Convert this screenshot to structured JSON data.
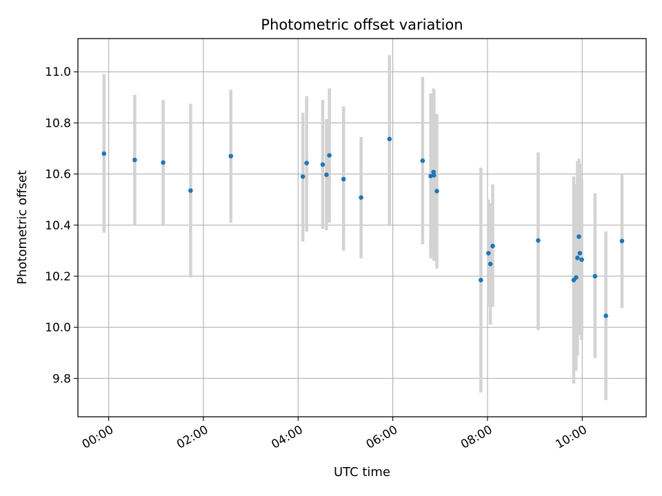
{
  "chart_data": {
    "type": "scatter",
    "title": "Photometric offset variation",
    "xlabel": "UTC time",
    "ylabel": "Photometric offset",
    "x_unit": "hours (UTC)",
    "xlim": [
      -0.65,
      11.35
    ],
    "ylim": [
      9.65,
      11.13
    ],
    "x_ticks": [
      {
        "value": 0,
        "label": "00:00"
      },
      {
        "value": 2,
        "label": "02:00"
      },
      {
        "value": 4,
        "label": "04:00"
      },
      {
        "value": 6,
        "label": "06:00"
      },
      {
        "value": 8,
        "label": "08:00"
      },
      {
        "value": 10,
        "label": "10:00"
      }
    ],
    "y_ticks": [
      {
        "value": 9.8,
        "label": "9.8"
      },
      {
        "value": 10.0,
        "label": "10.0"
      },
      {
        "value": 10.2,
        "label": "10.2"
      },
      {
        "value": 10.4,
        "label": "10.4"
      },
      {
        "value": 10.6,
        "label": "10.6"
      },
      {
        "value": 10.8,
        "label": "10.8"
      },
      {
        "value": 11.0,
        "label": "11.0"
      }
    ],
    "grid": true,
    "colors": {
      "marker": "#1f77b4",
      "errorbar": "#d3d3d3",
      "grid": "#b0b0b0"
    },
    "series": [
      {
        "points": [
          {
            "x": -0.1,
            "y": 10.68,
            "ylow": 10.37,
            "yhigh": 10.99
          },
          {
            "x": 0.55,
            "y": 10.655,
            "ylow": 10.4,
            "yhigh": 10.91
          },
          {
            "x": 1.15,
            "y": 10.645,
            "ylow": 10.4,
            "yhigh": 10.89
          },
          {
            "x": 1.73,
            "y": 10.535,
            "ylow": 10.195,
            "yhigh": 10.875
          },
          {
            "x": 2.58,
            "y": 10.67,
            "ylow": 10.41,
            "yhigh": 10.93
          },
          {
            "x": 4.1,
            "y": 10.59,
            "ylow": 10.335,
            "yhigh": 10.84
          },
          {
            "x": 4.18,
            "y": 10.643,
            "ylow": 10.375,
            "yhigh": 10.905
          },
          {
            "x": 4.52,
            "y": 10.637,
            "ylow": 10.385,
            "yhigh": 10.89
          },
          {
            "x": 4.6,
            "y": 10.597,
            "ylow": 10.38,
            "yhigh": 10.815
          },
          {
            "x": 4.66,
            "y": 10.673,
            "ylow": 10.41,
            "yhigh": 10.935
          },
          {
            "x": 4.96,
            "y": 10.58,
            "ylow": 10.3,
            "yhigh": 10.865
          },
          {
            "x": 5.33,
            "y": 10.508,
            "ylow": 10.27,
            "yhigh": 10.745
          },
          {
            "x": 5.93,
            "y": 10.737,
            "ylow": 10.4,
            "yhigh": 11.065
          },
          {
            "x": 6.63,
            "y": 10.652,
            "ylow": 10.325,
            "yhigh": 10.98
          },
          {
            "x": 6.8,
            "y": 10.592,
            "ylow": 10.27,
            "yhigh": 10.915
          },
          {
            "x": 6.86,
            "y": 10.608,
            "ylow": 10.28,
            "yhigh": 10.935
          },
          {
            "x": 6.87,
            "y": 10.595,
            "ylow": 10.26,
            "yhigh": 10.93
          },
          {
            "x": 6.93,
            "y": 10.533,
            "ylow": 10.23,
            "yhigh": 10.835
          },
          {
            "x": 7.86,
            "y": 10.185,
            "ylow": 9.745,
            "yhigh": 10.625
          },
          {
            "x": 8.02,
            "y": 10.29,
            "ylow": 10.08,
            "yhigh": 10.5
          },
          {
            "x": 8.06,
            "y": 10.248,
            "ylow": 10.01,
            "yhigh": 10.485
          },
          {
            "x": 8.11,
            "y": 10.318,
            "ylow": 10.08,
            "yhigh": 10.56
          },
          {
            "x": 9.07,
            "y": 10.34,
            "ylow": 9.99,
            "yhigh": 10.685
          },
          {
            "x": 9.82,
            "y": 10.185,
            "ylow": 9.78,
            "yhigh": 10.59
          },
          {
            "x": 9.87,
            "y": 10.195,
            "ylow": 9.83,
            "yhigh": 10.56
          },
          {
            "x": 9.9,
            "y": 10.272,
            "ylow": 9.89,
            "yhigh": 10.65
          },
          {
            "x": 9.93,
            "y": 10.355,
            "ylow": 9.97,
            "yhigh": 10.66
          },
          {
            "x": 9.95,
            "y": 10.29,
            "ylow": 9.99,
            "yhigh": 10.64
          },
          {
            "x": 9.99,
            "y": 10.265,
            "ylow": 9.95,
            "yhigh": 10.58
          },
          {
            "x": 10.27,
            "y": 10.2,
            "ylow": 9.88,
            "yhigh": 10.525
          },
          {
            "x": 10.5,
            "y": 10.045,
            "ylow": 9.715,
            "yhigh": 10.375
          },
          {
            "x": 10.84,
            "y": 10.338,
            "ylow": 10.075,
            "yhigh": 10.6
          }
        ]
      }
    ]
  }
}
